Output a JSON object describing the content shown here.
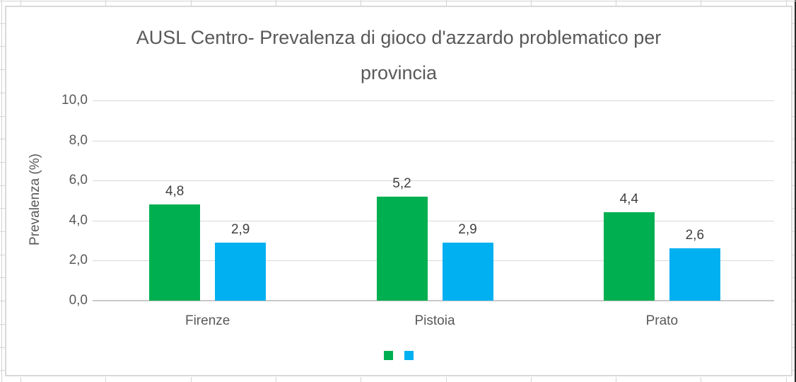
{
  "chart_data": {
    "type": "bar",
    "title": "AUSL Centro- Prevalenza di gioco d'azzardo problematico per provincia",
    "title_lines": [
      "AUSL Centro- Prevalenza di gioco d'azzardo problematico per",
      "provincia"
    ],
    "xlabel": "",
    "ylabel": "Prevalenza (%)",
    "categories": [
      "Firenze",
      "Pistoia",
      "Prato"
    ],
    "series": [
      {
        "name": "",
        "color": "#00B050",
        "values": [
          4.8,
          5.2,
          4.4
        ],
        "value_labels": [
          "4,8",
          "5,2",
          "4,4"
        ]
      },
      {
        "name": "",
        "color": "#00B0F0",
        "values": [
          2.9,
          2.9,
          2.6
        ],
        "value_labels": [
          "2,9",
          "2,9",
          "2,6"
        ]
      }
    ],
    "ylim": [
      0,
      10
    ],
    "ytick_values": [
      0,
      2,
      4,
      6,
      8,
      10
    ],
    "ytick_labels": [
      "0,0",
      "2,0",
      "4,0",
      "6,0",
      "8,0",
      "10,0"
    ],
    "grid": true,
    "number_format": "decimal-comma",
    "legend_position": "bottom-center",
    "legend": {
      "entries": [
        {
          "label": "",
          "color": "#00B050"
        },
        {
          "label": "",
          "color": "#00B0F0"
        }
      ]
    }
  },
  "colors": {
    "title_text": "#595959",
    "axis_text": "#595959",
    "data_label_text": "#404040",
    "gridline": "#D9D9D9",
    "axis_line": "#C8C8C8",
    "chart_border": "#D9D9D9",
    "spreadsheet_gridline": "#D4D4D4"
  }
}
